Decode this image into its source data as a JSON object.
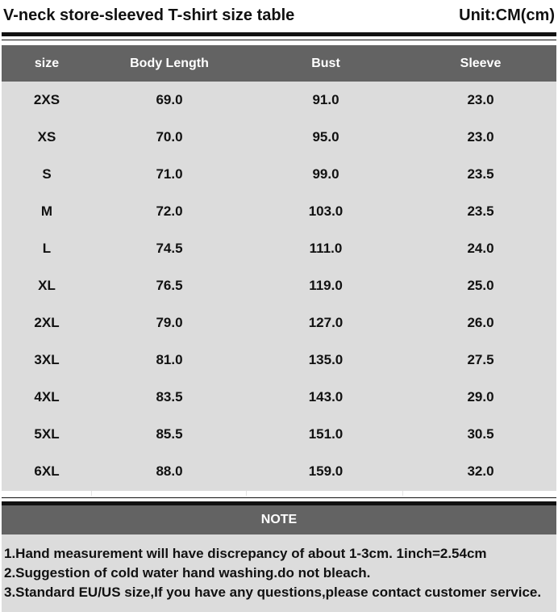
{
  "header": {
    "title": "V-neck store-sleeved T-shirt size table",
    "unit": "Unit:CM(cm)"
  },
  "table": {
    "columns": [
      "size",
      "Body Length",
      "Bust",
      "Sleeve"
    ],
    "rows": [
      [
        "2XS",
        "69.0",
        "91.0",
        "23.0"
      ],
      [
        "XS",
        "70.0",
        "95.0",
        "23.0"
      ],
      [
        "S",
        "71.0",
        "99.0",
        "23.5"
      ],
      [
        "M",
        "72.0",
        "103.0",
        "23.5"
      ],
      [
        "L",
        "74.5",
        "111.0",
        "24.0"
      ],
      [
        "XL",
        "76.5",
        "119.0",
        "25.0"
      ],
      [
        "2XL",
        "79.0",
        "127.0",
        "26.0"
      ],
      [
        "3XL",
        "81.0",
        "135.0",
        "27.5"
      ],
      [
        "4XL",
        "83.5",
        "143.0",
        "29.0"
      ],
      [
        "5XL",
        "85.5",
        "151.0",
        "30.5"
      ],
      [
        "6XL",
        "88.0",
        "159.0",
        "32.0"
      ]
    ]
  },
  "note": {
    "heading": "NOTE",
    "lines": [
      "1.Hand measurement will have discrepancy of about 1-3cm.  1inch=2.54cm",
      "2.Suggestion of cold water hand washing.do not bleach.",
      "3.Standard EU/US size,If you have any questions,please contact customer service."
    ]
  },
  "colors": {
    "header_band": "#636363",
    "table_background": "#dcdcdc",
    "rule": "#111111"
  }
}
